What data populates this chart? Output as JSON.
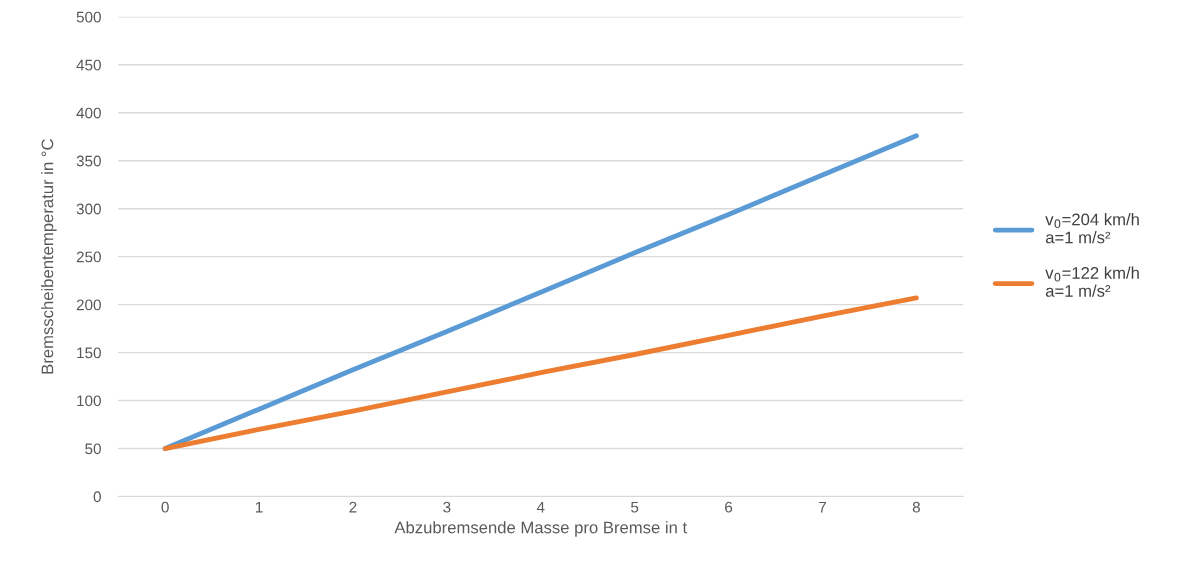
{
  "chart_data": {
    "type": "line",
    "xlabel": "Abzubremsende Masse pro Bremse in t",
    "ylabel": "Bremsscheibentemperatur in °C",
    "categories": [
      "0",
      "1",
      "2",
      "3",
      "4",
      "5",
      "6",
      "7",
      "8"
    ],
    "series": [
      {
        "name": "v$_{0}$=204 km/h\na=1 m/s²",
        "color": "#5b9bd5",
        "values": [
          50,
          91,
          132,
          172,
          213,
          254,
          294,
          335,
          376
        ]
      },
      {
        "name": "v$_{0}$=122 km/h\na=1 m/s²",
        "color": "#ed7d31",
        "values": [
          50,
          70,
          89,
          109,
          129,
          148,
          168,
          188,
          207
        ]
      }
    ],
    "ylim": [
      0,
      500
    ],
    "yticks": [
      0,
      50,
      100,
      150,
      200,
      250,
      300,
      350,
      400,
      450,
      500
    ],
    "grid": "y",
    "legend": "right",
    "marker": "none",
    "line_style": "solid"
  }
}
